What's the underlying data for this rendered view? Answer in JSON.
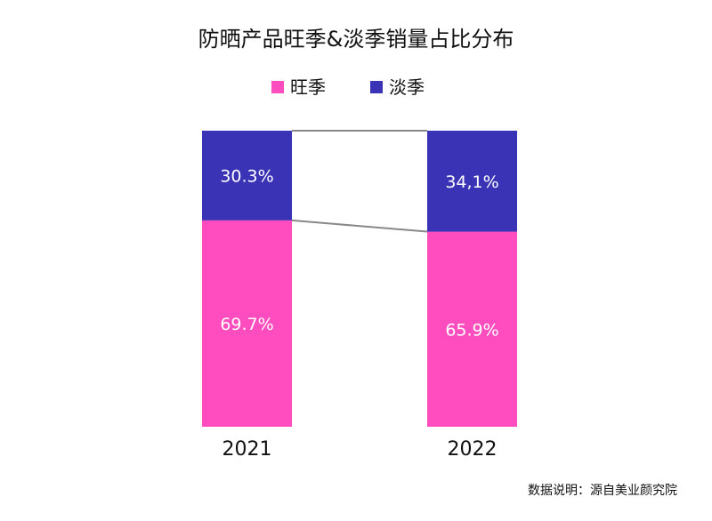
{
  "chart_data": {
    "type": "bar",
    "stacked": true,
    "percent": true,
    "title": "防晒产品旺季&淡季销量占比分布",
    "categories": [
      "2021",
      "2022"
    ],
    "series": [
      {
        "name": "旺季",
        "color": "#ff4dc0",
        "values": [
          69.7,
          65.9
        ],
        "labels": [
          "69.7%",
          "65.9%"
        ]
      },
      {
        "name": "淡季",
        "color": "#3a33b5",
        "values": [
          30.3,
          34.1
        ],
        "labels": [
          "30.3%",
          "34,1%"
        ]
      }
    ],
    "ylim": [
      0,
      100
    ],
    "grid": false,
    "legend_position": "top-center",
    "connector_color": "#888888"
  },
  "footer": {
    "source": "数据说明：源自美业颜究院"
  }
}
